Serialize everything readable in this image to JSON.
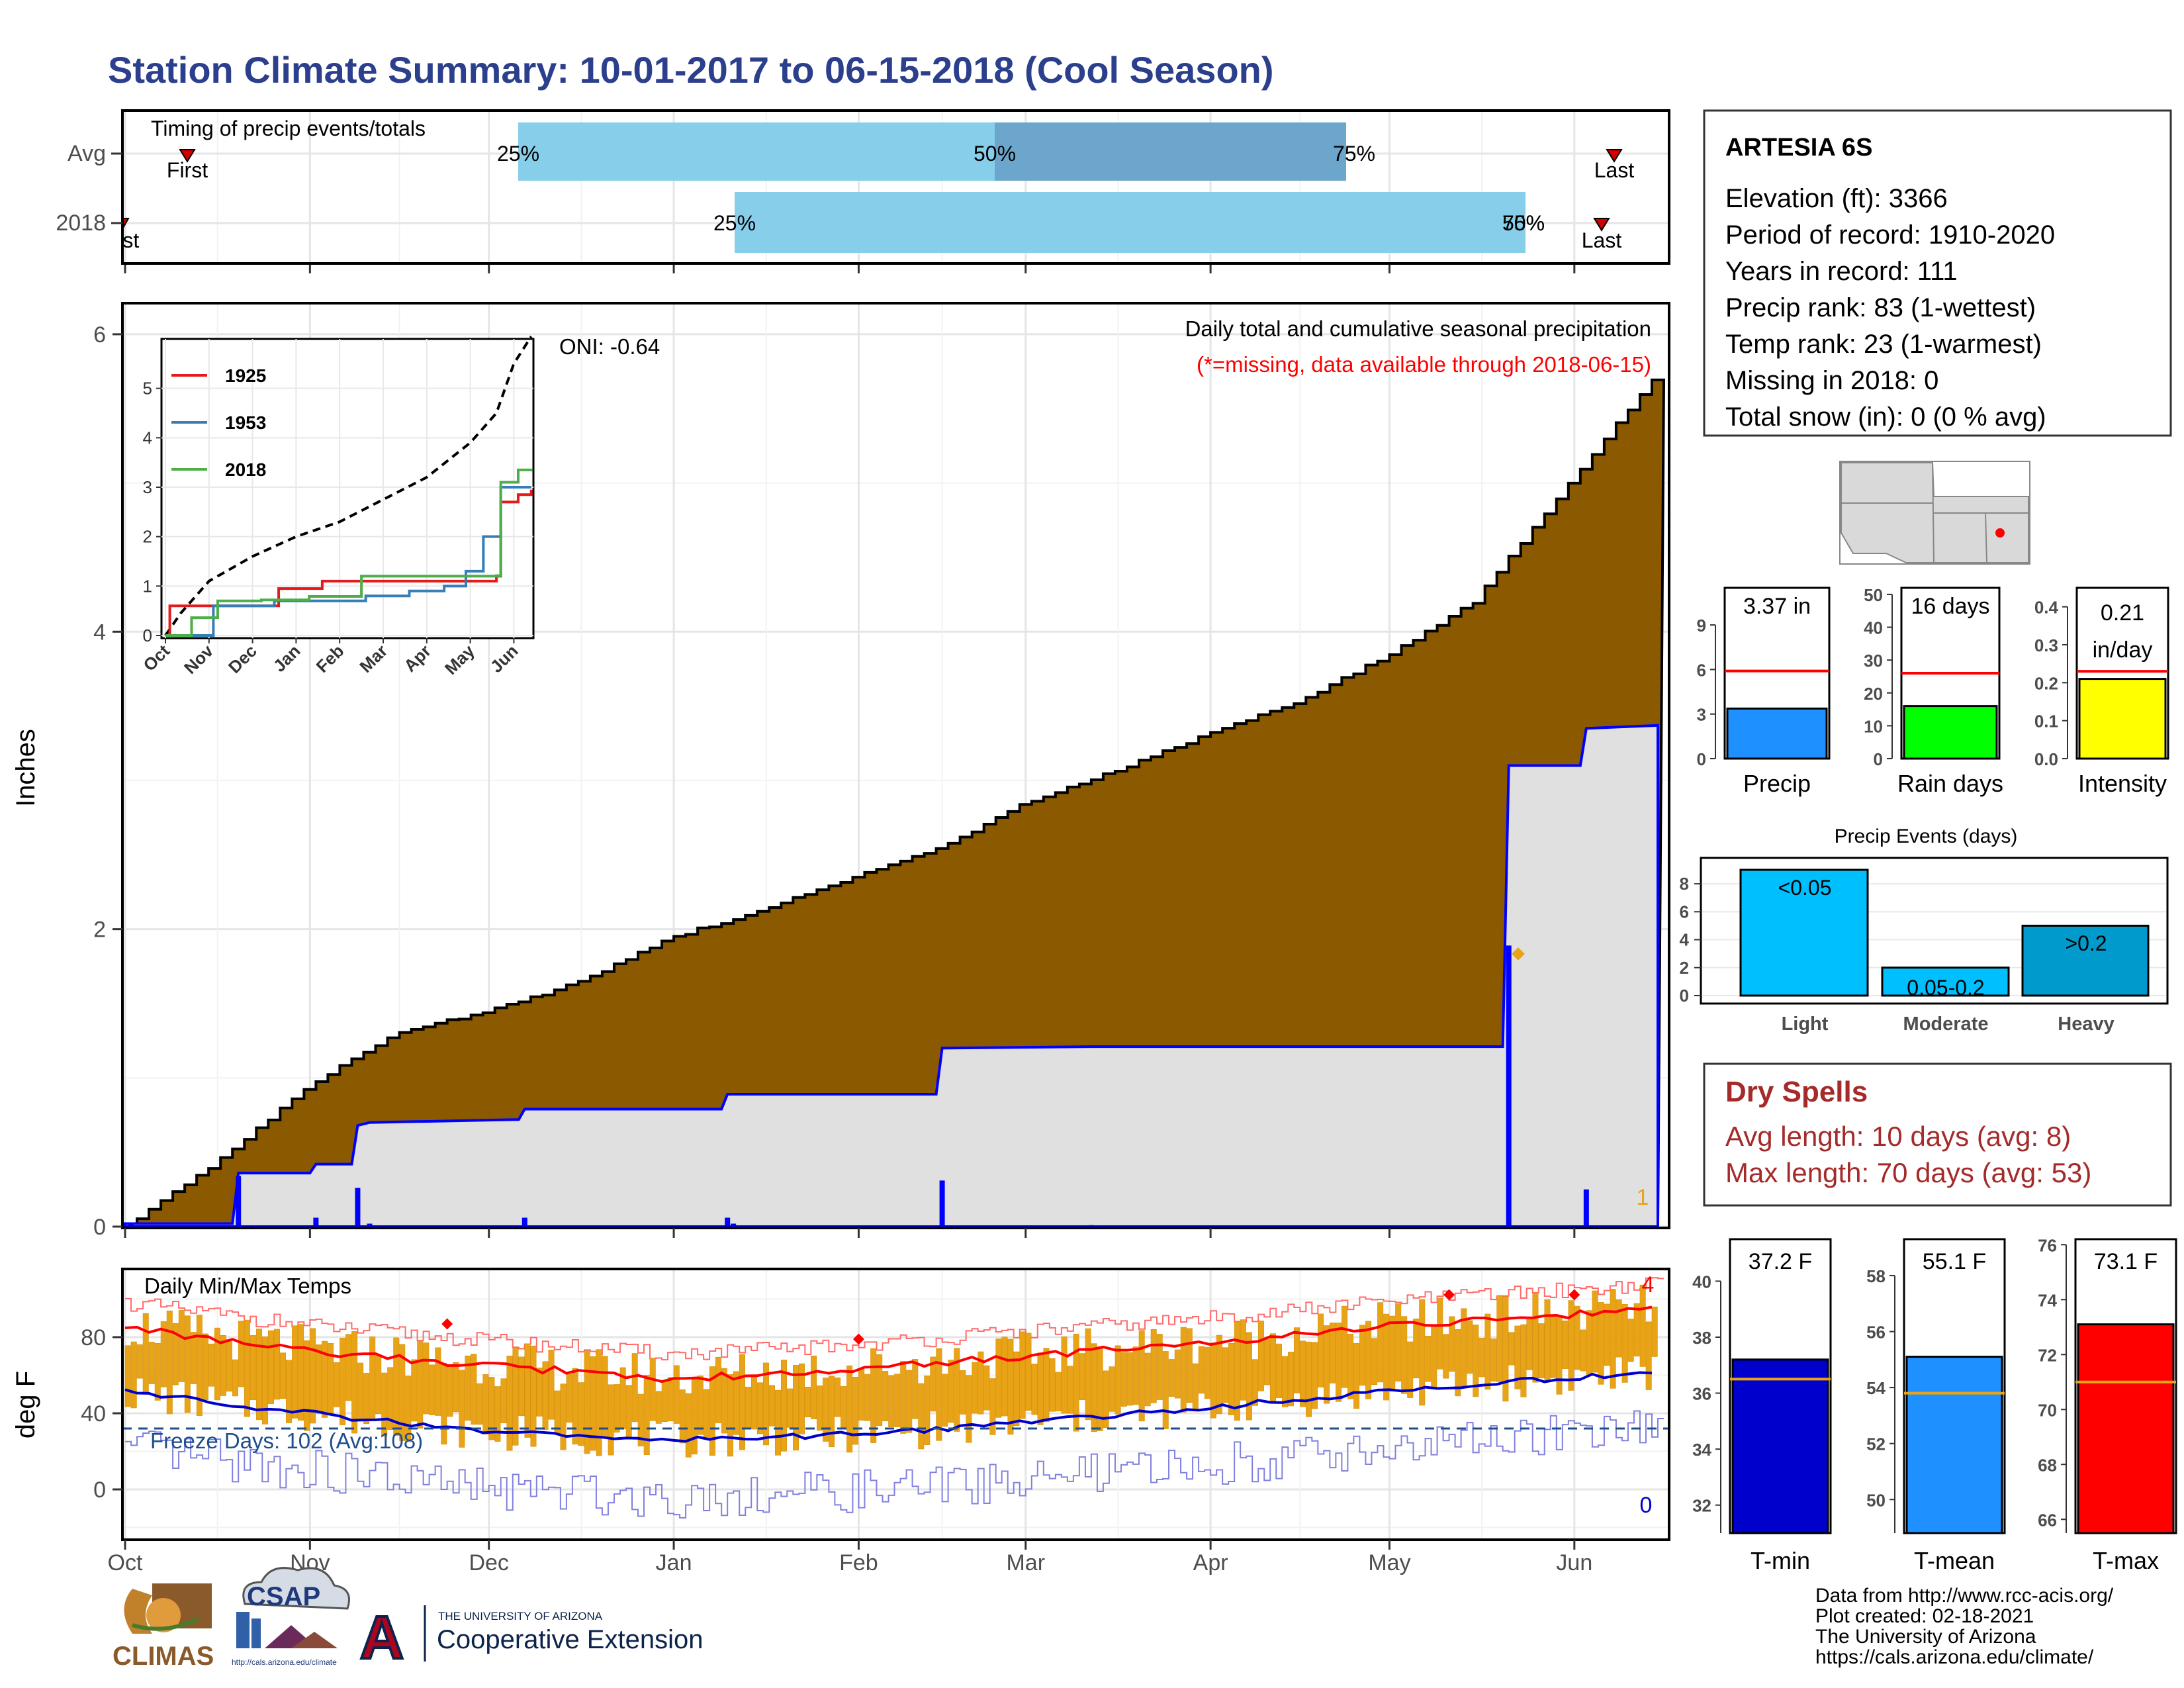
{
  "title": "Station Climate Summary: 10-01-2017 to 06-15-2018 (Cool Season)",
  "colors": {
    "title": "#2B3F8C",
    "cumulative_fill": "#8B5A00",
    "normal_fill": "#E0E0E0",
    "daily_bar": "#0000FF",
    "iqr_light": "#87CEEB",
    "iqr_dark": "#6CA6CD",
    "temp_bar": "#E8A317",
    "tmax": "#FF0000",
    "tmin": "#0000CD",
    "precip_bar": "#1E90FF",
    "rain_bar": "#00FF00",
    "intensity_bar": "#FFFF00",
    "events_bar": "#00BFFF",
    "events_bar_dark": "#009ACD",
    "dry_spells": "#A52A2A"
  },
  "station": {
    "name": "ARTESIA 6S",
    "lines": [
      "Elevation (ft): 3366",
      "Period of record: 1910-2020",
      "Years in record: 111",
      "Precip rank: 83 (1-wettest)",
      "Temp rank: 23 (1-warmest)",
      "Missing in 2018: 0",
      "Total snow (in): 0 (0 % avg)"
    ]
  },
  "timing": {
    "caption": "Timing of precip events/totals",
    "rows": [
      "Avg",
      "2018"
    ],
    "avg_labels": [
      "25%",
      "50%",
      "75%"
    ],
    "y2018_labels": [
      "25%",
      "50%",
      "75%"
    ],
    "first": "First",
    "last": "Last",
    "first_2018": "First"
  },
  "main_panel": {
    "ylabel": "Inches",
    "caption": "Daily total and cumulative seasonal precipitation",
    "note": "(*=missing, data available through 2018-06-15)",
    "oni": "ONI: -0.64",
    "count": "1",
    "yticks": [
      "0",
      "2",
      "4",
      "6"
    ]
  },
  "inset": {
    "xticks": [
      "Oct",
      "Nov",
      "Dec",
      "Jan",
      "Feb",
      "Mar",
      "Apr",
      "May",
      "Jun"
    ],
    "yticks": [
      "0",
      "1",
      "2",
      "3",
      "4",
      "5"
    ],
    "legend": [
      "1925",
      "1953",
      "2018"
    ]
  },
  "temp_panel": {
    "ylabel": "deg F",
    "caption": "Daily Min/Max Temps",
    "freeze": "Freeze Days: 102 (Avg:108)",
    "hot_count": "4",
    "cold_count": "0",
    "yticks": [
      "0",
      "40",
      "80"
    ]
  },
  "months": [
    "Oct",
    "Nov",
    "Dec",
    "Jan",
    "Feb",
    "Mar",
    "Apr",
    "May",
    "Jun"
  ],
  "precip_summary": {
    "items": [
      {
        "label": "Precip",
        "value_label": "3.37 in",
        "ticks": [
          "0",
          "3",
          "6",
          "9"
        ]
      },
      {
        "label": "Rain days",
        "value_label": "16 days",
        "ticks": [
          "0",
          "10",
          "20",
          "30",
          "40",
          "50"
        ]
      },
      {
        "label": "Intensity",
        "value_label1": "0.21",
        "value_label2": "in/day",
        "ticks": [
          "0.0",
          "0.1",
          "0.2",
          "0.3",
          "0.4"
        ]
      }
    ]
  },
  "precip_events": {
    "title": "Precip Events (days)",
    "categories": [
      "Light",
      "Moderate",
      "Heavy"
    ],
    "bar_labels": [
      "<0.05",
      "0.05-0.2",
      ">0.2"
    ],
    "ticks": [
      "0",
      "2",
      "4",
      "6",
      "8"
    ]
  },
  "dry_spells": {
    "title": "Dry Spells",
    "avg": "Avg length: 10 days (avg: 8)",
    "max": "Max length: 70 days (avg: 53)"
  },
  "temp_summary": {
    "items": [
      {
        "label": "T-min",
        "value_label": "37.2 F",
        "ticks": [
          "32",
          "34",
          "36",
          "38",
          "40"
        ]
      },
      {
        "label": "T-mean",
        "value_label": "55.1 F",
        "ticks": [
          "50",
          "52",
          "54",
          "56",
          "58"
        ]
      },
      {
        "label": "T-max",
        "value_label": "73.1 F",
        "ticks": [
          "66",
          "68",
          "70",
          "72",
          "74",
          "76"
        ]
      }
    ]
  },
  "footer": {
    "lines": [
      "Data from http://www.rcc-acis.org/",
      "Plot created: 02-18-2021",
      "The University of Arizona",
      "https://cals.arizona.edu/climate/"
    ],
    "climas": "CLIMAS",
    "csap": "CSAP",
    "csap_url": "http://cals.arizona.edu/climate",
    "ua_top": "THE UNIVERSITY OF ARIZONA",
    "ua_bottom": "Cooperative Extension",
    "ua_letter": "A"
  },
  "chart_data": [
    {
      "type": "area",
      "title": "Daily total and cumulative seasonal precipitation",
      "ylabel": "Inches",
      "ylim": [
        0,
        6.2
      ],
      "x_range": [
        "2017-10-01",
        "2018-06-15"
      ],
      "series": [
        {
          "name": "cumulative average",
          "kind": "area",
          "points": [
            [
              "2017-10-01",
              0.0
            ],
            [
              "2017-10-15",
              0.4
            ],
            [
              "2017-11-01",
              0.95
            ],
            [
              "2017-11-15",
              1.3
            ],
            [
              "2017-12-01",
              1.45
            ],
            [
              "2017-12-15",
              1.63
            ],
            [
              "2018-01-01",
              1.95
            ],
            [
              "2018-01-15",
              2.12
            ],
            [
              "2018-02-01",
              2.36
            ],
            [
              "2018-02-15",
              2.55
            ],
            [
              "2018-03-01",
              2.85
            ],
            [
              "2018-03-15",
              3.05
            ],
            [
              "2018-04-01",
              3.32
            ],
            [
              "2018-04-15",
              3.52
            ],
            [
              "2018-05-01",
              3.85
            ],
            [
              "2018-05-15",
              4.2
            ],
            [
              "2018-06-01",
              5.05
            ],
            [
              "2018-06-15",
              5.75
            ]
          ]
        },
        {
          "name": "2018 cumulative",
          "kind": "step",
          "points": [
            [
              "2017-10-01",
              0.02
            ],
            [
              "2017-10-19",
              0.02
            ],
            [
              "2017-10-20",
              0.36
            ],
            [
              "2017-11-01",
              0.36
            ],
            [
              "2017-11-02",
              0.42
            ],
            [
              "2017-11-08",
              0.42
            ],
            [
              "2017-11-09",
              0.68
            ],
            [
              "2017-11-11",
              0.7
            ],
            [
              "2017-12-06",
              0.72
            ],
            [
              "2017-12-07",
              0.79
            ],
            [
              "2018-01-09",
              0.79
            ],
            [
              "2018-01-10",
              0.89
            ],
            [
              "2018-02-14",
              0.89
            ],
            [
              "2018-02-15",
              1.2
            ],
            [
              "2018-03-12",
              1.21
            ],
            [
              "2018-05-20",
              1.21
            ],
            [
              "2018-05-21",
              3.1
            ],
            [
              "2018-06-02",
              3.1
            ],
            [
              "2018-06-03",
              3.35
            ],
            [
              "2018-06-15",
              3.37
            ]
          ]
        },
        {
          "name": "daily totals",
          "kind": "bar",
          "points": [
            [
              "2017-10-02",
              0.02
            ],
            [
              "2017-10-20",
              0.34
            ],
            [
              "2017-11-02",
              0.06
            ],
            [
              "2017-11-09",
              0.26
            ],
            [
              "2017-11-11",
              0.02
            ],
            [
              "2017-12-07",
              0.06
            ],
            [
              "2018-01-10",
              0.06
            ],
            [
              "2018-01-11",
              0.02
            ],
            [
              "2018-02-15",
              0.31
            ],
            [
              "2018-03-12",
              0.01
            ],
            [
              "2018-05-21",
              1.89
            ],
            [
              "2018-06-03",
              0.25
            ]
          ]
        }
      ]
    },
    {
      "type": "line",
      "title": "",
      "x": [
        "Oct",
        "Nov",
        "Dec",
        "Jan",
        "Feb",
        "Mar",
        "Apr",
        "May",
        "Jun"
      ],
      "ylim": [
        0,
        6
      ],
      "series": [
        {
          "name": "average",
          "points": [
            [
              0,
              0
            ],
            [
              0.35,
              0.45
            ],
            [
              1,
              1.1
            ],
            [
              2,
              1.6
            ],
            [
              3,
              2.0
            ],
            [
              4,
              2.3
            ],
            [
              5,
              2.75
            ],
            [
              6,
              3.2
            ],
            [
              7,
              3.9
            ],
            [
              7.6,
              4.5
            ],
            [
              8,
              5.5
            ],
            [
              8.4,
              6.05
            ]
          ]
        },
        {
          "name": "1925",
          "points": [
            [
              0,
              0
            ],
            [
              0.1,
              0.6
            ],
            [
              1.5,
              0.6
            ],
            [
              2.6,
              0.95
            ],
            [
              3.6,
              1.1
            ],
            [
              4.6,
              1.1
            ],
            [
              6.5,
              1.1
            ],
            [
              7.6,
              1.2
            ],
            [
              7.7,
              2.7
            ],
            [
              8.1,
              2.85
            ],
            [
              8.4,
              2.95
            ]
          ]
        },
        {
          "name": "1953",
          "points": [
            [
              0,
              0
            ],
            [
              0.9,
              0
            ],
            [
              1.1,
              0.6
            ],
            [
              2.5,
              0.7
            ],
            [
              4.6,
              0.8
            ],
            [
              5.6,
              0.9
            ],
            [
              6.4,
              1.0
            ],
            [
              6.9,
              1.3
            ],
            [
              7.3,
              2.0
            ],
            [
              7.7,
              3.0
            ],
            [
              8.4,
              3.0
            ]
          ]
        },
        {
          "name": "2018",
          "points": [
            [
              0,
              0
            ],
            [
              0.6,
              0.36
            ],
            [
              1.2,
              0.7
            ],
            [
              2.2,
              0.72
            ],
            [
              3.3,
              0.79
            ],
            [
              4.5,
              1.2
            ],
            [
              7.6,
              1.21
            ],
            [
              7.7,
              3.1
            ],
            [
              8.1,
              3.35
            ],
            [
              8.4,
              3.37
            ]
          ]
        }
      ]
    },
    {
      "type": "bar",
      "title": "Daily Min/Max Temps",
      "ylabel": "deg F",
      "ylim": [
        -30,
        115
      ],
      "series": [
        {
          "name": "avg max",
          "points": [
            [
              "2017-10-01",
              85
            ],
            [
              "2017-11-01",
              73
            ],
            [
              "2017-12-01",
              65
            ],
            [
              "2018-01-01",
              58
            ],
            [
              "2018-02-01",
              63
            ],
            [
              "2018-03-01",
              70
            ],
            [
              "2018-04-01",
              77
            ],
            [
              "2018-05-01",
              86
            ],
            [
              "2018-06-15",
              95
            ]
          ]
        },
        {
          "name": "avg min",
          "points": [
            [
              "2017-10-01",
              51
            ],
            [
              "2017-11-01",
              40
            ],
            [
              "2017-12-01",
              30
            ],
            [
              "2018-01-01",
              26
            ],
            [
              "2018-02-01",
              29
            ],
            [
              "2018-03-01",
              35
            ],
            [
              "2018-04-01",
              43
            ],
            [
              "2018-05-01",
              52
            ],
            [
              "2018-06-15",
              62
            ]
          ]
        },
        {
          "name": "freeze line",
          "points": [
            [
              "2017-10-01",
              32
            ],
            [
              "2018-06-15",
              32
            ]
          ]
        }
      ]
    },
    {
      "type": "bar",
      "categories": [
        "Precip"
      ],
      "values": [
        3.37
      ],
      "normal": 5.9,
      "ylim": [
        0,
        11.5
      ]
    },
    {
      "type": "bar",
      "categories": [
        "Rain days"
      ],
      "values": [
        16
      ],
      "normal": 26,
      "ylim": [
        0,
        52
      ]
    },
    {
      "type": "bar",
      "categories": [
        "Intensity"
      ],
      "values": [
        0.21
      ],
      "normal": 0.23,
      "ylim": [
        0,
        0.45
      ]
    },
    {
      "type": "bar",
      "title": "Precip Events (days)",
      "categories": [
        "Light",
        "Moderate",
        "Heavy"
      ],
      "values": [
        9,
        2,
        5
      ],
      "ylim": [
        0,
        9
      ]
    },
    {
      "type": "bar",
      "categories": [
        "T-min"
      ],
      "values": [
        37.2
      ],
      "normal": 36.5,
      "ylim": [
        31,
        41.5
      ]
    },
    {
      "type": "bar",
      "categories": [
        "T-mean"
      ],
      "values": [
        55.1
      ],
      "normal": 53.8,
      "ylim": [
        48.8,
        59.3
      ]
    },
    {
      "type": "bar",
      "categories": [
        "T-max"
      ],
      "values": [
        73.1
      ],
      "normal": 71.0,
      "ylim": [
        65.5,
        76.2
      ]
    }
  ]
}
